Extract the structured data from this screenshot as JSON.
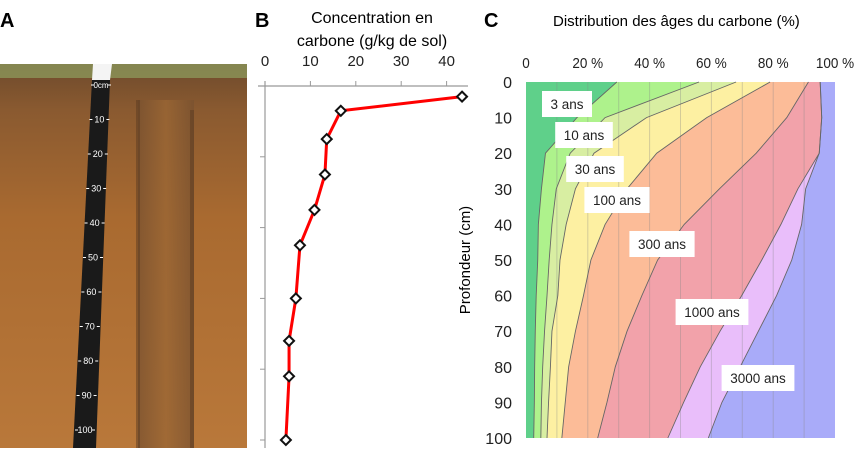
{
  "panel_a": {
    "letter": "A",
    "ruler_labels": [
      "0cm",
      "10",
      "20",
      "30",
      "40",
      "50",
      "60",
      "70",
      "80",
      "90",
      "100"
    ]
  },
  "chart_data": [
    {
      "type": "line",
      "letter": "B",
      "title": "Concentration en carbone (g/kg de sol)",
      "title_lines": [
        "Concentration en",
        "carbone (g/kg de sol)"
      ],
      "x_axis_position": "top",
      "x_ticks": [
        0,
        10,
        20,
        30,
        40
      ],
      "xlim": [
        0,
        44
      ],
      "ylim": [
        0,
        100
      ],
      "y_inverted": true,
      "y_tick_values": [
        20,
        40,
        60,
        80,
        100
      ],
      "series": [
        {
          "color": "#ff0000",
          "marker": "diamond",
          "points": [
            {
              "x": 43.4,
              "y": 3
            },
            {
              "x": 16.7,
              "y": 7
            },
            {
              "x": 13.6,
              "y": 15
            },
            {
              "x": 13.2,
              "y": 25
            },
            {
              "x": 10.9,
              "y": 35
            },
            {
              "x": 7.7,
              "y": 45
            },
            {
              "x": 6.8,
              "y": 60
            },
            {
              "x": 5.3,
              "y": 72
            },
            {
              "x": 5.3,
              "y": 82
            },
            {
              "x": 4.6,
              "y": 100
            }
          ]
        }
      ]
    },
    {
      "type": "area",
      "letter": "C",
      "title": "Distribution des âges du carbone (%)",
      "ylabel": "Profondeur (cm)",
      "x_axis_position": "top",
      "x_tick_labels": [
        "0",
        "20 %",
        "40 %",
        "60 %",
        "80 %",
        "100 %"
      ],
      "x_ticks": [
        0,
        20,
        40,
        60,
        80,
        100
      ],
      "xlim": [
        0,
        100
      ],
      "ylim": [
        0,
        100
      ],
      "y_inverted": true,
      "y_ticks": [
        0,
        10,
        20,
        30,
        40,
        50,
        60,
        70,
        80,
        90,
        100
      ],
      "grid": "vertical every 10 %",
      "depths": [
        0,
        10,
        20,
        30,
        40,
        50,
        60,
        70,
        80,
        90,
        100
      ],
      "stacked_cumulative": true,
      "series": [
        {
          "name": "3 ans",
          "color": "#5fd08a",
          "cumulative": [
            29.4,
            16.5,
            6.3,
            5.0,
            4.0,
            3.8,
            3.3,
            3.0,
            2.8,
            2.7,
            2.5
          ]
        },
        {
          "name": "10 ans",
          "color": "#aef28c",
          "cumulative": [
            56,
            25.6,
            14.3,
            9.8,
            8.4,
            7.5,
            6.8,
            6.0,
            5.4,
            5.0,
            4.8
          ]
        },
        {
          "name": "30 ans",
          "color": "#d8eea2",
          "cumulative": [
            68,
            39,
            22,
            16,
            13,
            11,
            10.3,
            8.4,
            7.9,
            7.3,
            6.8
          ]
        },
        {
          "name": "100 ans",
          "color": "#fdf0a2",
          "cumulative": [
            79,
            58.5,
            42.3,
            32.7,
            25.6,
            21,
            18.6,
            16,
            13.8,
            12.7,
            11.6
          ]
        },
        {
          "name": "300 ans",
          "color": "#fcbc98",
          "cumulative": [
            91.4,
            84.4,
            74.5,
            62.6,
            51.2,
            42.6,
            37.5,
            32.7,
            28.9,
            26.2,
            23.2
          ]
        },
        {
          "name": "1000 ans",
          "color": "#f2a2aa",
          "cumulative": [
            95.2,
            95.7,
            94.9,
            88,
            82.5,
            76.3,
            69.8,
            62.8,
            56.4,
            51,
            45.9
          ]
        },
        {
          "name": "3000 ans",
          "color": "#e9befa",
          "cumulative": [
            95.2,
            95.7,
            94.9,
            90.5,
            89.2,
            86,
            81.1,
            75.2,
            69.3,
            63.4,
            59
          ]
        },
        {
          "name": "",
          "color": "#a9abf9",
          "cumulative": [
            100,
            100,
            100,
            100,
            100,
            100,
            100,
            100,
            100,
            100,
            100
          ]
        }
      ]
    }
  ]
}
